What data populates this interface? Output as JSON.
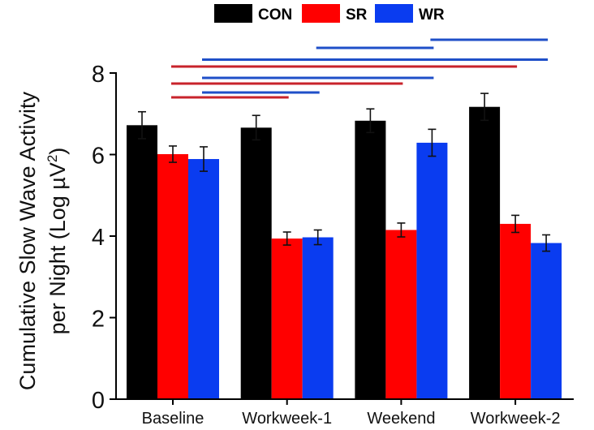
{
  "chart_data": {
    "type": "bar",
    "title": "",
    "xlabel": "",
    "ylabel_line1": "Cumulative Slow Wave Activity",
    "ylabel_line2_prefix": "per Night (Log µV",
    "ylabel_line2_sup": "2",
    "ylabel_line2_suffix": ")",
    "ylim": [
      0,
      8
    ],
    "yticks": [
      0,
      2,
      4,
      6,
      8
    ],
    "ytick_labels": [
      "0",
      "2",
      "4",
      "6",
      "8"
    ],
    "grid": false,
    "legend_position": "top-center",
    "categories": [
      "Baseline",
      "Workweek-1",
      "Weekend",
      "Workweek-2"
    ],
    "series": [
      {
        "name": "CON",
        "color": "#000000",
        "values": [
          6.72,
          6.66,
          6.83,
          7.17
        ],
        "errors": [
          0.33,
          0.3,
          0.29,
          0.33
        ]
      },
      {
        "name": "SR",
        "color": "#ff0000",
        "values": [
          6.01,
          3.94,
          4.15,
          4.3
        ],
        "errors": [
          0.2,
          0.16,
          0.17,
          0.21
        ]
      },
      {
        "name": "WR",
        "color": "#0a3cf0",
        "values": [
          5.89,
          3.97,
          6.29,
          3.83
        ],
        "errors": [
          0.3,
          0.18,
          0.33,
          0.2
        ]
      }
    ],
    "significance_lines": [
      {
        "series": "WR",
        "from": "Weekend",
        "to": "Workweek-2",
        "color": "#1f4fc8"
      },
      {
        "series": "WR",
        "from": "Workweek-1",
        "to": "Weekend",
        "color": "#1f4fc8"
      },
      {
        "series": "WR",
        "from": "Baseline",
        "to": "Workweek-2",
        "color": "#1f4fc8"
      },
      {
        "series": "SR",
        "from": "Baseline",
        "to": "Workweek-2",
        "color": "#c8232b"
      },
      {
        "series": "WR",
        "from": "Baseline",
        "to": "Weekend",
        "color": "#1f4fc8"
      },
      {
        "series": "SR",
        "from": "Baseline",
        "to": "Weekend",
        "color": "#c8232b"
      },
      {
        "series": "WR",
        "from": "Baseline",
        "to": "Workweek-1",
        "color": "#1f4fc8"
      },
      {
        "series": "SR",
        "from": "Baseline",
        "to": "Workweek-1",
        "color": "#c8232b"
      }
    ]
  }
}
